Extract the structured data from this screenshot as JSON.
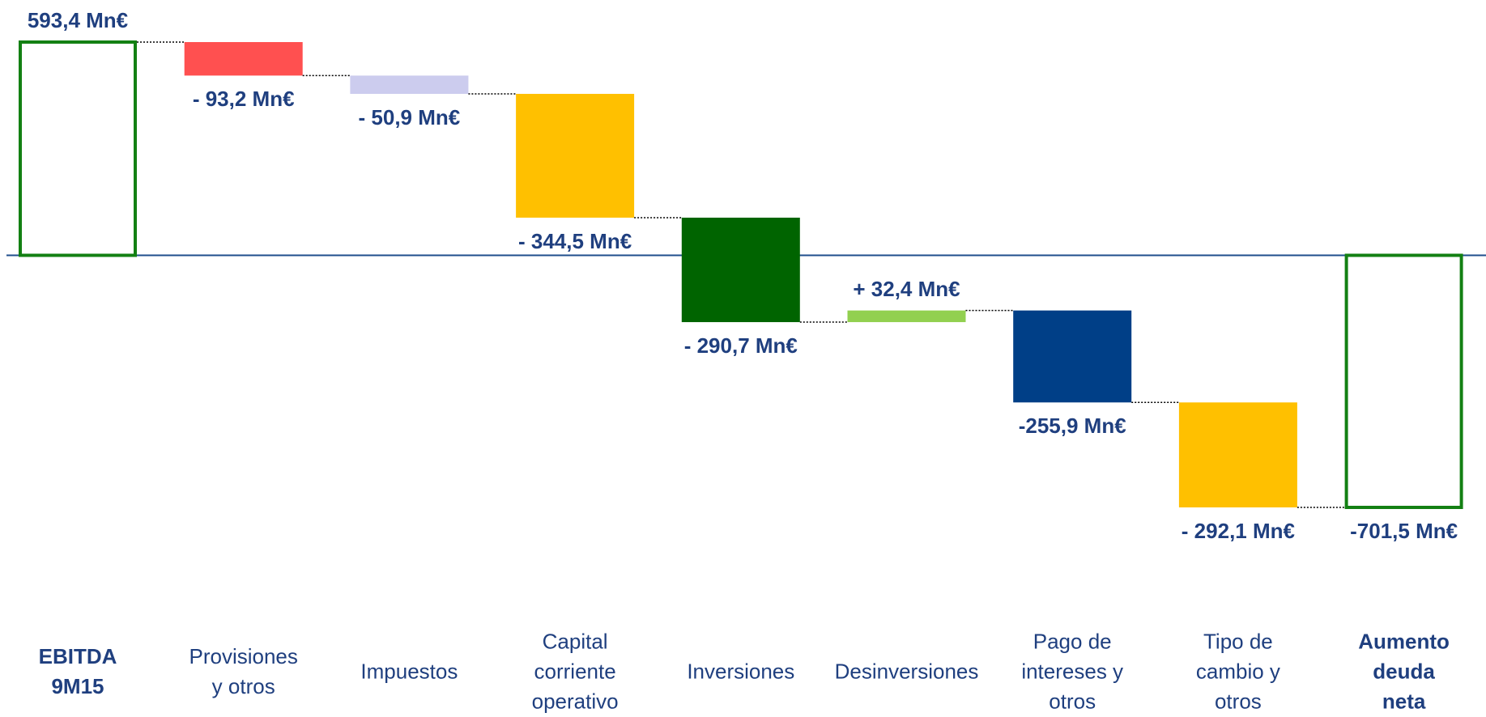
{
  "chart_data": {
    "type": "waterfall",
    "categories": [
      "EBITDA\n9M15",
      "Provisiones\ny otros",
      "Impuestos",
      "Capital\ncorriente\noperativo",
      "Inversiones",
      "Desinversiones",
      "Pago de\nintereses y\notros",
      "Tipo de\ncambio y\notros",
      "Aumento\ndeuda neta"
    ],
    "values": [
      593.4,
      -93.2,
      -50.9,
      -344.5,
      -290.7,
      32.4,
      -255.9,
      -292.1,
      -701.5
    ],
    "value_labels": [
      "593,4 Mn€",
      "- 93,2 Mn€",
      "- 50,9 Mn€",
      "- 344,5 Mn€",
      "- 290,7 Mn€",
      "+ 32,4 Mn€",
      "-255,9 Mn€",
      "- 292,1 Mn€",
      "-701,5 Mn€"
    ],
    "totals": [
      true,
      false,
      false,
      false,
      false,
      false,
      false,
      false,
      true
    ],
    "colors": [
      "#138013",
      "#ff5050",
      "#ccccee",
      "#ffc000",
      "#006400",
      "#92d050",
      "#003f87",
      "#ffc000",
      "#138013"
    ]
  }
}
